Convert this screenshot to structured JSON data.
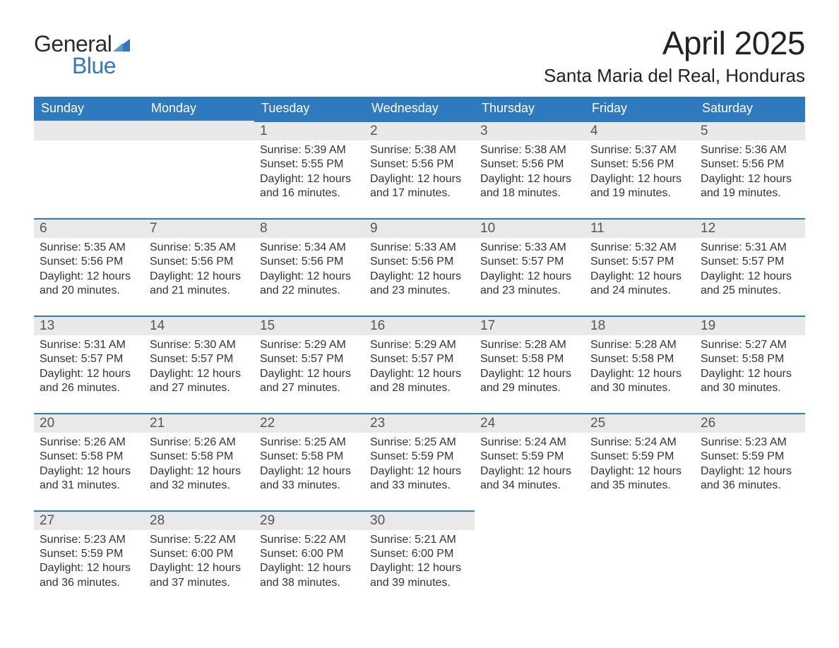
{
  "brand": {
    "word1": "General",
    "word2": "Blue",
    "sail_color": "#2f79bf"
  },
  "title": "April 2025",
  "location": "Santa Maria del Real, Honduras",
  "colors": {
    "header_bg": "#2f79bf",
    "header_fg": "#ffffff",
    "band_bg": "#e9e9e9",
    "rule": "#2f79bf",
    "body_fg": "#333333",
    "page_bg": "#ffffff"
  },
  "layout": {
    "columns": 7,
    "col_width_pct": 14.285,
    "font_family": "Segoe UI / Helvetica Neue"
  },
  "weekdays": [
    "Sunday",
    "Monday",
    "Tuesday",
    "Wednesday",
    "Thursday",
    "Friday",
    "Saturday"
  ],
  "labels": {
    "sunrise": "Sunrise",
    "sunset": "Sunset",
    "daylight_prefix": "Daylight"
  },
  "weeks": [
    [
      null,
      null,
      {
        "n": "1",
        "sunrise": "5:39 AM",
        "sunset": "5:55 PM",
        "daylight": "12 hours and 16 minutes."
      },
      {
        "n": "2",
        "sunrise": "5:38 AM",
        "sunset": "5:56 PM",
        "daylight": "12 hours and 17 minutes."
      },
      {
        "n": "3",
        "sunrise": "5:38 AM",
        "sunset": "5:56 PM",
        "daylight": "12 hours and 18 minutes."
      },
      {
        "n": "4",
        "sunrise": "5:37 AM",
        "sunset": "5:56 PM",
        "daylight": "12 hours and 19 minutes."
      },
      {
        "n": "5",
        "sunrise": "5:36 AM",
        "sunset": "5:56 PM",
        "daylight": "12 hours and 19 minutes."
      }
    ],
    [
      {
        "n": "6",
        "sunrise": "5:35 AM",
        "sunset": "5:56 PM",
        "daylight": "12 hours and 20 minutes."
      },
      {
        "n": "7",
        "sunrise": "5:35 AM",
        "sunset": "5:56 PM",
        "daylight": "12 hours and 21 minutes."
      },
      {
        "n": "8",
        "sunrise": "5:34 AM",
        "sunset": "5:56 PM",
        "daylight": "12 hours and 22 minutes."
      },
      {
        "n": "9",
        "sunrise": "5:33 AM",
        "sunset": "5:56 PM",
        "daylight": "12 hours and 23 minutes."
      },
      {
        "n": "10",
        "sunrise": "5:33 AM",
        "sunset": "5:57 PM",
        "daylight": "12 hours and 23 minutes."
      },
      {
        "n": "11",
        "sunrise": "5:32 AM",
        "sunset": "5:57 PM",
        "daylight": "12 hours and 24 minutes."
      },
      {
        "n": "12",
        "sunrise": "5:31 AM",
        "sunset": "5:57 PM",
        "daylight": "12 hours and 25 minutes."
      }
    ],
    [
      {
        "n": "13",
        "sunrise": "5:31 AM",
        "sunset": "5:57 PM",
        "daylight": "12 hours and 26 minutes."
      },
      {
        "n": "14",
        "sunrise": "5:30 AM",
        "sunset": "5:57 PM",
        "daylight": "12 hours and 27 minutes."
      },
      {
        "n": "15",
        "sunrise": "5:29 AM",
        "sunset": "5:57 PM",
        "daylight": "12 hours and 27 minutes."
      },
      {
        "n": "16",
        "sunrise": "5:29 AM",
        "sunset": "5:57 PM",
        "daylight": "12 hours and 28 minutes."
      },
      {
        "n": "17",
        "sunrise": "5:28 AM",
        "sunset": "5:58 PM",
        "daylight": "12 hours and 29 minutes."
      },
      {
        "n": "18",
        "sunrise": "5:28 AM",
        "sunset": "5:58 PM",
        "daylight": "12 hours and 30 minutes."
      },
      {
        "n": "19",
        "sunrise": "5:27 AM",
        "sunset": "5:58 PM",
        "daylight": "12 hours and 30 minutes."
      }
    ],
    [
      {
        "n": "20",
        "sunrise": "5:26 AM",
        "sunset": "5:58 PM",
        "daylight": "12 hours and 31 minutes."
      },
      {
        "n": "21",
        "sunrise": "5:26 AM",
        "sunset": "5:58 PM",
        "daylight": "12 hours and 32 minutes."
      },
      {
        "n": "22",
        "sunrise": "5:25 AM",
        "sunset": "5:58 PM",
        "daylight": "12 hours and 33 minutes."
      },
      {
        "n": "23",
        "sunrise": "5:25 AM",
        "sunset": "5:59 PM",
        "daylight": "12 hours and 33 minutes."
      },
      {
        "n": "24",
        "sunrise": "5:24 AM",
        "sunset": "5:59 PM",
        "daylight": "12 hours and 34 minutes."
      },
      {
        "n": "25",
        "sunrise": "5:24 AM",
        "sunset": "5:59 PM",
        "daylight": "12 hours and 35 minutes."
      },
      {
        "n": "26",
        "sunrise": "5:23 AM",
        "sunset": "5:59 PM",
        "daylight": "12 hours and 36 minutes."
      }
    ],
    [
      {
        "n": "27",
        "sunrise": "5:23 AM",
        "sunset": "5:59 PM",
        "daylight": "12 hours and 36 minutes."
      },
      {
        "n": "28",
        "sunrise": "5:22 AM",
        "sunset": "6:00 PM",
        "daylight": "12 hours and 37 minutes."
      },
      {
        "n": "29",
        "sunrise": "5:22 AM",
        "sunset": "6:00 PM",
        "daylight": "12 hours and 38 minutes."
      },
      {
        "n": "30",
        "sunrise": "5:21 AM",
        "sunset": "6:00 PM",
        "daylight": "12 hours and 39 minutes."
      },
      null,
      null,
      null
    ]
  ]
}
